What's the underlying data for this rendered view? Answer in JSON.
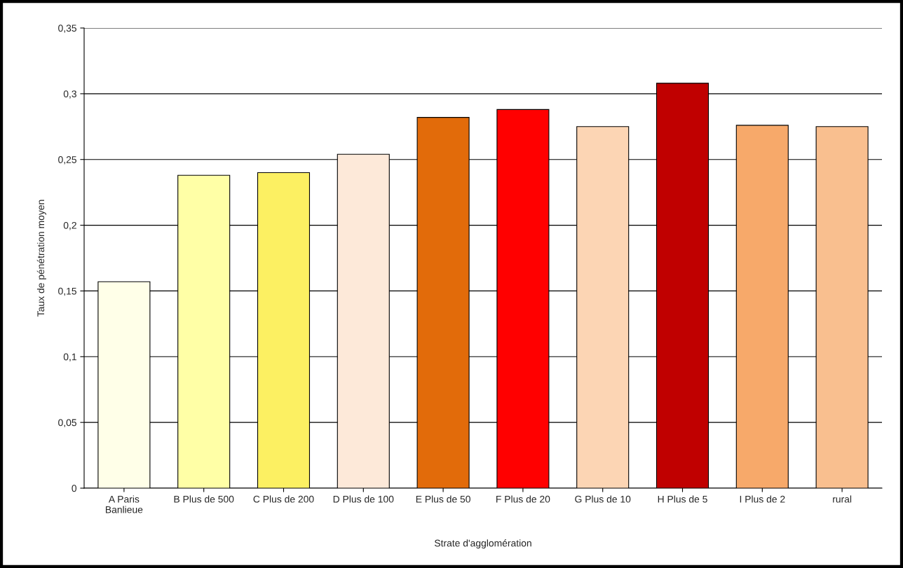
{
  "chart_data": {
    "type": "bar",
    "xlabel": "Strate d'agglomération",
    "ylabel": "Taux de pénétration moyen",
    "categories": [
      "A Paris\nBanlieue",
      "B Plus de 500",
      "C Plus de 200",
      "D Plus de 100",
      "E Plus de 50",
      "F Plus de 20",
      "G Plus de 10",
      "H Plus de 5",
      "I Plus de 2",
      "rural"
    ],
    "values": [
      0.157,
      0.238,
      0.24,
      0.254,
      0.282,
      0.288,
      0.275,
      0.308,
      0.276,
      0.275
    ],
    "colors": [
      "#ffffe8",
      "#ffffa6",
      "#fcf062",
      "#fde9d9",
      "#e26b0a",
      "#ff0000",
      "#fcd5b4",
      "#c00000",
      "#f7a96a",
      "#f9bf8f"
    ],
    "ylim": [
      0,
      0.35
    ],
    "yticks": [
      {
        "value": 0,
        "label": "0"
      },
      {
        "value": 0.05,
        "label": "0,05"
      },
      {
        "value": 0.1,
        "label": "0,1"
      },
      {
        "value": 0.15,
        "label": "0,15"
      },
      {
        "value": 0.2,
        "label": "0,2"
      },
      {
        "value": 0.25,
        "label": "0,25"
      },
      {
        "value": 0.3,
        "label": "0,3"
      },
      {
        "value": 0.35,
        "label": "0,35"
      }
    ],
    "grid": "y",
    "legend": false
  }
}
